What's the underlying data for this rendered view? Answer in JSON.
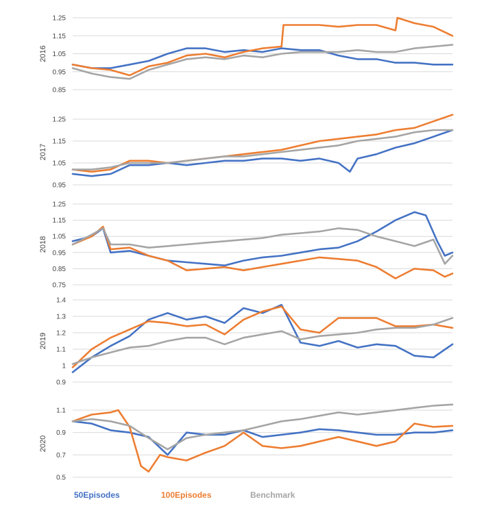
{
  "colors": {
    "s50": "#4472C4",
    "s100": "#ED7D31",
    "bench": "#A5A5A5"
  },
  "legend": [
    {
      "label": "50Episodes",
      "color": "#4472C4"
    },
    {
      "label": "100Episodes",
      "color": "#ED7D31"
    },
    {
      "label": "Benchmark",
      "color": "#A5A5A5"
    }
  ],
  "chart_data": [
    {
      "type": "line",
      "ylabel": "2016",
      "yticks": [
        "0.85",
        "0.95",
        "1.05",
        "1.15",
        "1.25"
      ],
      "ylim": [
        0.85,
        1.25
      ],
      "grid": true,
      "series": [
        {
          "name": "50Episodes",
          "x": [
            0,
            5,
            10,
            15,
            20,
            25,
            30,
            35,
            40,
            45,
            50,
            55,
            60,
            65,
            70,
            75,
            80,
            85,
            90,
            95,
            100
          ],
          "values": [
            0.99,
            0.97,
            0.97,
            0.99,
            1.01,
            1.05,
            1.08,
            1.08,
            1.06,
            1.07,
            1.06,
            1.08,
            1.07,
            1.07,
            1.04,
            1.02,
            1.02,
            1.0,
            1.0,
            0.99,
            0.99
          ]
        },
        {
          "name": "100Episodes",
          "x": [
            0,
            5,
            10,
            15,
            20,
            25,
            30,
            35,
            40,
            45,
            50,
            55,
            55.5,
            60,
            65,
            70,
            75,
            80,
            85,
            85.5,
            90,
            95,
            100
          ],
          "values": [
            0.99,
            0.97,
            0.96,
            0.93,
            0.98,
            1.0,
            1.04,
            1.05,
            1.03,
            1.06,
            1.08,
            1.09,
            1.21,
            1.21,
            1.21,
            1.2,
            1.21,
            1.21,
            1.18,
            1.25,
            1.22,
            1.2,
            1.15
          ]
        },
        {
          "name": "Benchmark",
          "x": [
            0,
            5,
            10,
            15,
            20,
            25,
            30,
            35,
            40,
            45,
            50,
            55,
            60,
            65,
            70,
            75,
            80,
            85,
            90,
            95,
            100
          ],
          "values": [
            0.97,
            0.94,
            0.92,
            0.91,
            0.96,
            0.99,
            1.02,
            1.03,
            1.02,
            1.04,
            1.03,
            1.05,
            1.06,
            1.06,
            1.06,
            1.07,
            1.06,
            1.06,
            1.08,
            1.09,
            1.1
          ]
        }
      ]
    },
    {
      "type": "line",
      "ylabel": "2017",
      "yticks": [
        "0.95",
        "1.05",
        "1.15",
        "1.25"
      ],
      "ylim": [
        0.95,
        1.25
      ],
      "grid": true,
      "series": [
        {
          "name": "50Episodes",
          "x": [
            0,
            5,
            10,
            15,
            20,
            25,
            30,
            35,
            40,
            45,
            50,
            55,
            60,
            65,
            70,
            73,
            75,
            80,
            85,
            90,
            95,
            100
          ],
          "values": [
            1.0,
            0.99,
            1.0,
            1.04,
            1.04,
            1.05,
            1.04,
            1.05,
            1.06,
            1.06,
            1.07,
            1.07,
            1.06,
            1.07,
            1.05,
            1.01,
            1.07,
            1.09,
            1.12,
            1.14,
            1.17,
            1.2
          ]
        },
        {
          "name": "100Episodes",
          "x": [
            0,
            5,
            10,
            15,
            20,
            25,
            30,
            35,
            40,
            45,
            50,
            55,
            60,
            65,
            70,
            75,
            80,
            85,
            90,
            95,
            100
          ],
          "values": [
            1.02,
            1.01,
            1.02,
            1.06,
            1.06,
            1.05,
            1.06,
            1.07,
            1.08,
            1.09,
            1.1,
            1.11,
            1.13,
            1.15,
            1.16,
            1.17,
            1.18,
            1.2,
            1.21,
            1.24,
            1.27
          ]
        },
        {
          "name": "Benchmark",
          "x": [
            0,
            5,
            10,
            15,
            20,
            25,
            30,
            35,
            40,
            45,
            50,
            55,
            60,
            65,
            70,
            75,
            80,
            85,
            90,
            95,
            100
          ],
          "values": [
            1.02,
            1.02,
            1.03,
            1.05,
            1.05,
            1.05,
            1.06,
            1.07,
            1.08,
            1.08,
            1.09,
            1.1,
            1.11,
            1.12,
            1.13,
            1.15,
            1.16,
            1.17,
            1.19,
            1.2,
            1.2
          ]
        }
      ]
    },
    {
      "type": "line",
      "ylabel": "2018",
      "yticks": [
        "0.75",
        "0.85",
        "0.95",
        "1.05",
        "1.15",
        "1.25"
      ],
      "ylim": [
        0.75,
        1.25
      ],
      "grid": true,
      "series": [
        {
          "name": "50Episodes",
          "x": [
            0,
            5,
            8,
            10,
            15,
            20,
            25,
            30,
            35,
            40,
            45,
            50,
            55,
            60,
            65,
            70,
            75,
            80,
            85,
            90,
            93,
            96,
            98,
            100
          ],
          "values": [
            1.02,
            1.05,
            1.1,
            0.95,
            0.96,
            0.93,
            0.9,
            0.89,
            0.88,
            0.87,
            0.9,
            0.92,
            0.93,
            0.95,
            0.97,
            0.98,
            1.02,
            1.08,
            1.15,
            1.2,
            1.18,
            1.02,
            0.93,
            0.95
          ]
        },
        {
          "name": "100Episodes",
          "x": [
            0,
            5,
            8,
            10,
            15,
            20,
            25,
            30,
            35,
            40,
            45,
            50,
            55,
            60,
            65,
            70,
            75,
            80,
            85,
            90,
            95,
            98,
            100
          ],
          "values": [
            1.0,
            1.05,
            1.11,
            0.97,
            0.98,
            0.93,
            0.9,
            0.84,
            0.85,
            0.86,
            0.84,
            0.86,
            0.88,
            0.9,
            0.92,
            0.91,
            0.9,
            0.86,
            0.79,
            0.85,
            0.84,
            0.8,
            0.82
          ]
        },
        {
          "name": "Benchmark",
          "x": [
            0,
            5,
            8,
            10,
            15,
            20,
            25,
            30,
            35,
            40,
            45,
            50,
            55,
            60,
            65,
            70,
            75,
            80,
            85,
            90,
            95,
            98,
            100
          ],
          "values": [
            1.0,
            1.06,
            1.1,
            1.0,
            1.0,
            0.98,
            0.99,
            1.0,
            1.01,
            1.02,
            1.03,
            1.04,
            1.06,
            1.07,
            1.08,
            1.1,
            1.09,
            1.05,
            1.02,
            0.99,
            1.03,
            0.88,
            0.93
          ]
        }
      ]
    },
    {
      "type": "line",
      "ylabel": "2019",
      "yticks": [
        "0.9",
        "1",
        "1.1",
        "1.2",
        "1.3",
        "1.4"
      ],
      "ylim": [
        0.9,
        1.4
      ],
      "grid": true,
      "series": [
        {
          "name": "50Episodes",
          "x": [
            0,
            5,
            10,
            15,
            20,
            25,
            30,
            35,
            40,
            45,
            50,
            55,
            60,
            65,
            70,
            75,
            80,
            85,
            90,
            95,
            100
          ],
          "values": [
            0.96,
            1.05,
            1.12,
            1.18,
            1.28,
            1.32,
            1.28,
            1.3,
            1.26,
            1.35,
            1.32,
            1.37,
            1.14,
            1.12,
            1.15,
            1.11,
            1.13,
            1.12,
            1.06,
            1.05,
            1.13
          ]
        },
        {
          "name": "100Episodes",
          "x": [
            0,
            5,
            10,
            15,
            20,
            25,
            30,
            35,
            40,
            45,
            50,
            55,
            60,
            65,
            70,
            75,
            80,
            85,
            90,
            95,
            100
          ],
          "values": [
            0.99,
            1.1,
            1.17,
            1.22,
            1.27,
            1.26,
            1.24,
            1.25,
            1.19,
            1.28,
            1.33,
            1.36,
            1.22,
            1.2,
            1.29,
            1.29,
            1.29,
            1.24,
            1.24,
            1.25,
            1.23
          ]
        },
        {
          "name": "Benchmark",
          "x": [
            0,
            5,
            10,
            15,
            20,
            25,
            30,
            35,
            40,
            45,
            50,
            55,
            60,
            65,
            70,
            75,
            80,
            85,
            90,
            95,
            100
          ],
          "values": [
            1.01,
            1.05,
            1.08,
            1.11,
            1.12,
            1.15,
            1.17,
            1.17,
            1.13,
            1.17,
            1.19,
            1.21,
            1.16,
            1.18,
            1.19,
            1.2,
            1.22,
            1.23,
            1.23,
            1.25,
            1.29
          ]
        }
      ]
    },
    {
      "type": "line",
      "ylabel": "2020",
      "yticks": [
        "0.5",
        "0.7",
        "0.9",
        "1.1"
      ],
      "ylim": [
        0.5,
        1.1
      ],
      "grid": true,
      "series": [
        {
          "name": "50Episodes",
          "x": [
            0,
            5,
            10,
            15,
            20,
            25,
            30,
            35,
            40,
            45,
            50,
            55,
            60,
            65,
            70,
            75,
            80,
            85,
            90,
            95,
            100
          ],
          "values": [
            1.0,
            0.98,
            0.92,
            0.9,
            0.86,
            0.7,
            0.9,
            0.88,
            0.88,
            0.92,
            0.86,
            0.88,
            0.9,
            0.93,
            0.92,
            0.9,
            0.88,
            0.88,
            0.9,
            0.9,
            0.92
          ]
        },
        {
          "name": "100Episodes",
          "x": [
            0,
            5,
            10,
            12,
            15,
            18,
            20,
            23,
            25,
            30,
            35,
            40,
            45,
            50,
            55,
            60,
            65,
            70,
            75,
            80,
            85,
            90,
            95,
            100
          ],
          "values": [
            1.0,
            1.06,
            1.08,
            1.1,
            0.95,
            0.6,
            0.55,
            0.7,
            0.68,
            0.65,
            0.72,
            0.78,
            0.9,
            0.78,
            0.76,
            0.78,
            0.82,
            0.86,
            0.82,
            0.78,
            0.82,
            0.98,
            0.95,
            0.96
          ]
        },
        {
          "name": "Benchmark",
          "x": [
            0,
            5,
            10,
            15,
            20,
            25,
            30,
            35,
            40,
            45,
            50,
            55,
            60,
            65,
            70,
            75,
            80,
            85,
            90,
            95,
            100
          ],
          "values": [
            1.0,
            1.02,
            1.0,
            0.96,
            0.85,
            0.75,
            0.85,
            0.88,
            0.9,
            0.92,
            0.96,
            1.0,
            1.02,
            1.05,
            1.08,
            1.06,
            1.08,
            1.1,
            1.12,
            1.14,
            1.15
          ]
        }
      ]
    }
  ]
}
